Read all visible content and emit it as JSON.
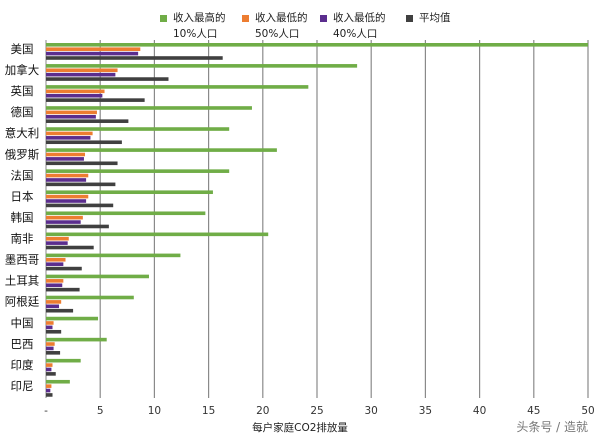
{
  "chart_data": {
    "type": "bar",
    "orientation": "horizontal",
    "xlabel": "每户家庭CO2排放量",
    "xlim": [
      0,
      50
    ],
    "x_ticks": [
      "-",
      "5",
      "10",
      "15",
      "20",
      "25",
      "30",
      "35",
      "40",
      "45",
      "50"
    ],
    "grid": true,
    "legend_position": "top",
    "categories": [
      "美国",
      "加拿大",
      "英国",
      "德国",
      "意大利",
      "俄罗斯",
      "法国",
      "日本",
      "韩国",
      "南非",
      "墨西哥",
      "土耳其",
      "阿根廷",
      "中国",
      "巴西",
      "印度",
      "印尼"
    ],
    "series": [
      {
        "name": "收入最高的\n10%人口",
        "color": "#70ad47",
        "values": [
          50,
          28.7,
          24.2,
          19.0,
          16.9,
          21.3,
          16.9,
          15.4,
          14.7,
          20.5,
          12.4,
          9.5,
          8.1,
          4.8,
          5.6,
          3.2,
          2.2
        ]
      },
      {
        "name": "收入最低的\n50%人口",
        "color": "#ed7d31",
        "values": [
          8.7,
          6.6,
          5.4,
          4.7,
          4.3,
          3.6,
          3.9,
          3.9,
          3.4,
          2.1,
          1.8,
          1.6,
          1.4,
          0.7,
          0.8,
          0.6,
          0.5
        ]
      },
      {
        "name": "收入最低的\n40%人口",
        "color": "#5b2d8e",
        "values": [
          8.5,
          6.4,
          5.2,
          4.6,
          4.1,
          3.5,
          3.7,
          3.7,
          3.2,
          2.0,
          1.6,
          1.5,
          1.2,
          0.6,
          0.7,
          0.5,
          0.4
        ]
      },
      {
        "name": "平均值",
        "color": "#404040",
        "values": [
          16.3,
          11.3,
          9.1,
          7.6,
          7.0,
          6.6,
          6.4,
          6.2,
          5.8,
          4.4,
          3.3,
          3.1,
          2.5,
          1.4,
          1.3,
          0.9,
          0.6
        ]
      }
    ]
  },
  "watermark": "头条号 / 造就"
}
